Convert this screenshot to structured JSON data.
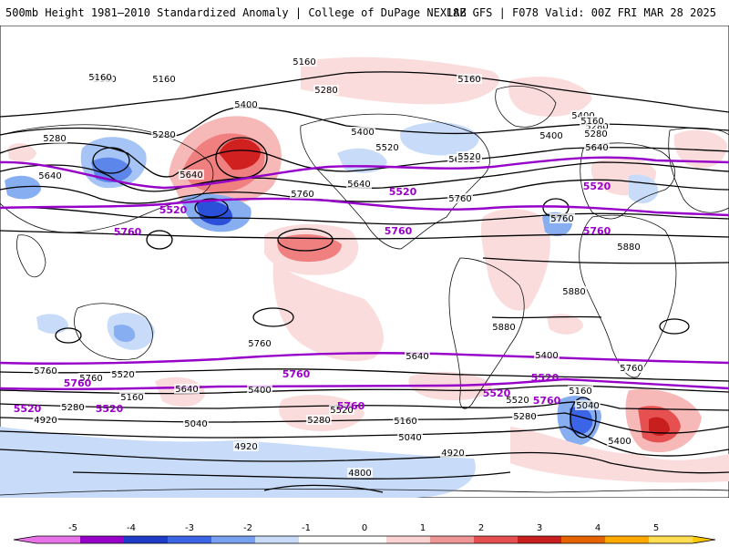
{
  "header": {
    "title": "500mb Height 1981–2010 Standardized Anomaly | College of DuPage NEXLAB",
    "run_info": "18Z GFS | F078 Valid: 00Z FRI MAR 28 2025"
  },
  "contour_labels": {
    "black": [
      "5160",
      "5160",
      "5160",
      "5160",
      "5280",
      "5280",
      "5400",
      "5400",
      "5520",
      "5640",
      "5640",
      "5400",
      "5280",
      "5640",
      "5760",
      "5520",
      "5760",
      "5160",
      "5280",
      "5160",
      "5520",
      "5640",
      "5400",
      "5280",
      "5640",
      "5760",
      "5880",
      "5880",
      "5880",
      "5760",
      "5760",
      "5520",
      "5400",
      "5280",
      "5640",
      "5400",
      "5160",
      "5040",
      "4920",
      "5520",
      "5280",
      "5160",
      "5040",
      "4920",
      "4920",
      "4800",
      "5520",
      "5280",
      "5760",
      "5640",
      "5400",
      "5160",
      "5040",
      "5760"
    ],
    "purple": [
      "5520",
      "5760",
      "5520",
      "5760",
      "5520",
      "5760",
      "5520",
      "5760",
      "5760",
      "5760",
      "5760",
      "5520",
      "5520",
      "5520"
    ]
  },
  "colorbar": {
    "ticks": [
      "-5",
      "-4",
      "-3",
      "-2",
      "-1",
      "0",
      "1",
      "2",
      "3",
      "4",
      "5"
    ],
    "colors": [
      "#e873e8",
      "#9600c8",
      "#1e3cc8",
      "#3c64e6",
      "#78a0f0",
      "#c8dcfa",
      "#ffffff",
      "#ffffff",
      "#fad2d2",
      "#f09696",
      "#e65050",
      "#c81e1e",
      "#e66400",
      "#ffaa00",
      "#ffdc50"
    ]
  }
}
